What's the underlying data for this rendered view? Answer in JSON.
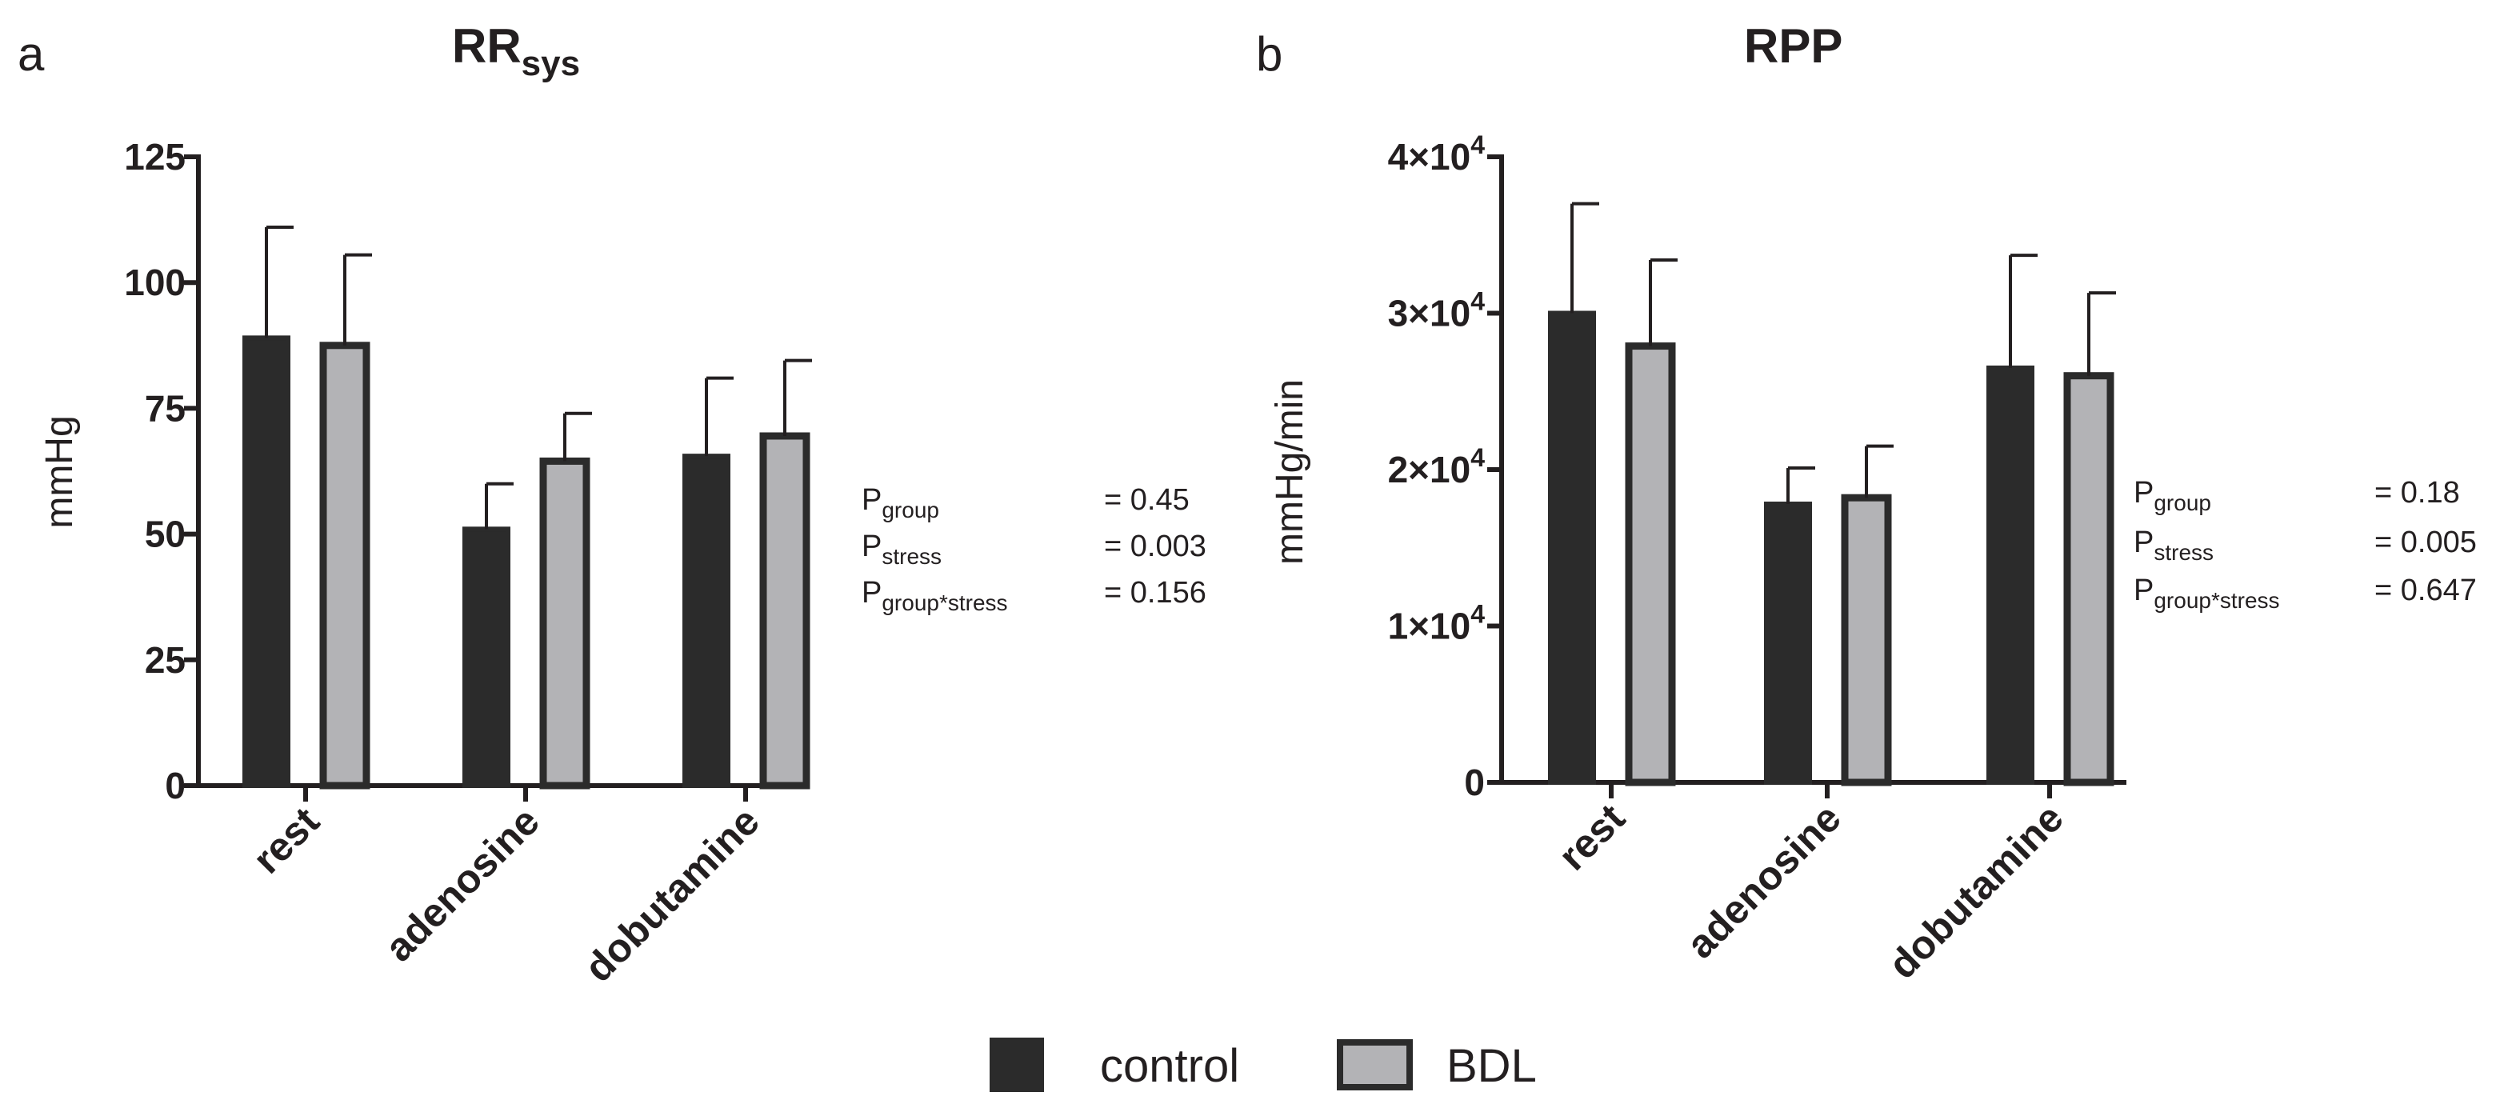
{
  "colors": {
    "control": "#2b2b2b",
    "bdl": "#b3b3b6",
    "stroke": "#2b2b2b"
  },
  "legend": [
    {
      "key": "control",
      "label": "control"
    },
    {
      "key": "bdl",
      "label": "BDL"
    }
  ],
  "chart_data": [
    {
      "type": "bar",
      "panel_label": "a",
      "title": "RR",
      "title_sub": "sys",
      "ylabel": "mmHg",
      "ylim": [
        0,
        125
      ],
      "yticks": [
        0,
        25,
        50,
        75,
        100,
        125
      ],
      "ytick_labels": [
        "0",
        "25",
        "50",
        "75",
        "100",
        "125"
      ],
      "categories": [
        "rest",
        "adenosine",
        "dobutamine"
      ],
      "series": [
        {
          "name": "control",
          "values": [
            89,
            51,
            65.5
          ],
          "errors": [
            22,
            9,
            15.5
          ]
        },
        {
          "name": "BDL",
          "values": [
            87.5,
            64.5,
            69.5
          ],
          "errors": [
            18,
            9.5,
            15
          ]
        }
      ],
      "stats": [
        {
          "p": "P",
          "sub": "group",
          "value": "= 0.45"
        },
        {
          "p": "P",
          "sub": "stress",
          "value": "= 0.003"
        },
        {
          "p": "P",
          "sub": "group*stress",
          "value": "= 0.156"
        }
      ]
    },
    {
      "type": "bar",
      "panel_label": "b",
      "title": "RPP",
      "title_sub": "",
      "ylabel": "mmHg/min",
      "ylim": [
        0,
        40000
      ],
      "yticks": [
        0,
        10000,
        20000,
        30000,
        40000
      ],
      "ytick_labels": [
        "0",
        "1×10",
        "2×10",
        "3×10",
        "4×10"
      ],
      "ytick_exp": [
        "",
        "4",
        "4",
        "4",
        "4"
      ],
      "categories": [
        "rest",
        "adenosine",
        "dobutamine"
      ],
      "series": [
        {
          "name": "control",
          "values": [
            30000,
            17800,
            26500
          ],
          "errors": [
            7000,
            2300,
            7200
          ]
        },
        {
          "name": "BDL",
          "values": [
            27900,
            18200,
            26000
          ],
          "errors": [
            5500,
            3300,
            5300
          ]
        }
      ],
      "stats": [
        {
          "p": "P",
          "sub": "group",
          "value": "= 0.18"
        },
        {
          "p": "P",
          "sub": "stress",
          "value": "= 0.005"
        },
        {
          "p": "P",
          "sub": "group*stress",
          "value": "= 0.647"
        }
      ]
    }
  ]
}
